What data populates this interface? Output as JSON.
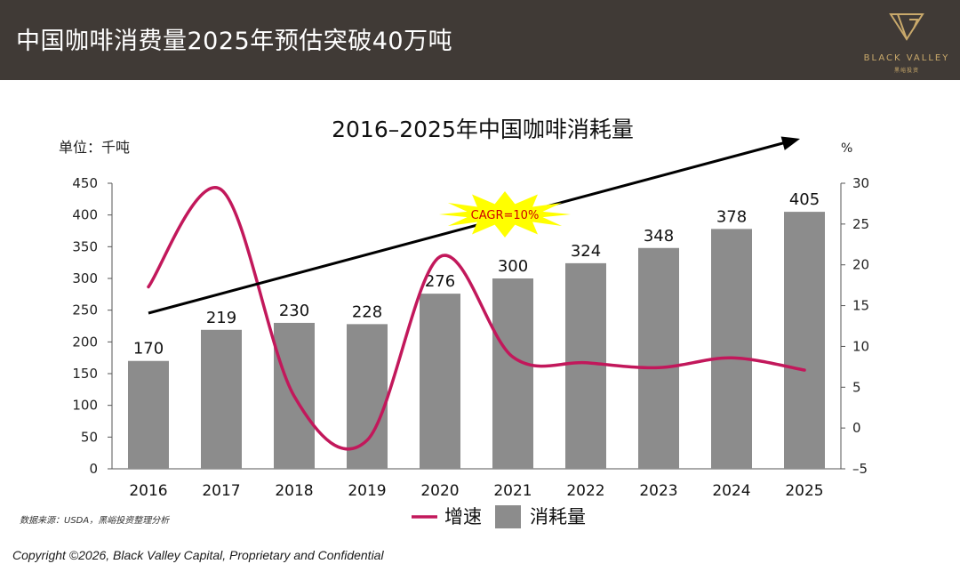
{
  "header": {
    "title": "中国咖啡消费量2025年预估突破40万吨",
    "logo_name": "BLACK VALLEY",
    "logo_sub": "黑峪投资"
  },
  "colors": {
    "header_bg": "#403a36",
    "bar": "#8c8c8c",
    "line": "#c2185b",
    "arrow": "#000000",
    "starburst": "#ffff00",
    "cagr_text": "#d00000",
    "logo": "#c9a96b"
  },
  "chart_data": {
    "type": "bar",
    "title": "2016–2025年中国咖啡消耗量",
    "unit_left": "单位：千吨",
    "unit_right": "%",
    "categories": [
      "2016",
      "2017",
      "2018",
      "2019",
      "2020",
      "2021",
      "2022",
      "2023",
      "2024",
      "2025"
    ],
    "series": [
      {
        "name": "消耗量",
        "type": "bar",
        "axis": "left",
        "values": [
          170,
          219,
          230,
          228,
          276,
          300,
          324,
          348,
          378,
          405
        ]
      },
      {
        "name": "增速",
        "type": "line",
        "axis": "right",
        "values": [
          17.3,
          29.2,
          3.9,
          -1.5,
          21.0,
          8.7,
          8.0,
          7.4,
          8.6,
          7.1
        ]
      }
    ],
    "ylim_left": [
      0,
      450
    ],
    "yticks_left": [
      0,
      50,
      100,
      150,
      200,
      250,
      300,
      350,
      400,
      450
    ],
    "ylim_right": [
      -5,
      30
    ],
    "yticks_right": [
      -5,
      0,
      5,
      10,
      15,
      20,
      25,
      30
    ],
    "annotation": "CAGR=10%",
    "legend": [
      "增速",
      "消耗量"
    ],
    "legend_position": "bottom"
  },
  "note": "数据来源：USDA，黑峪投资整理分析",
  "footer": "Copyright ©2026, Black Valley Capital, Proprietary and Confidential"
}
